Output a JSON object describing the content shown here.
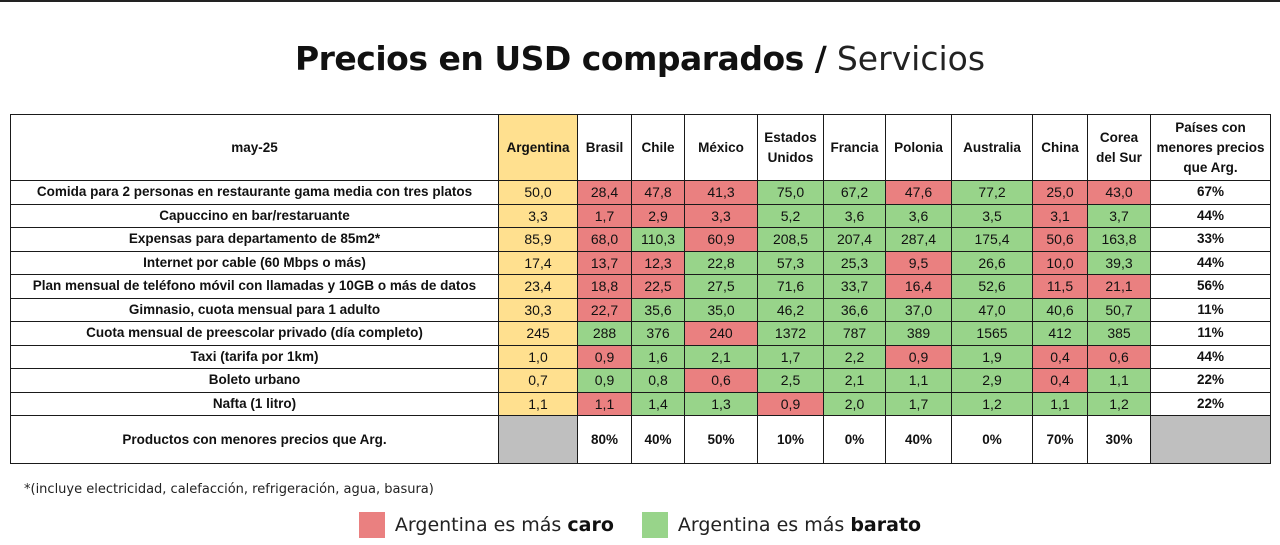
{
  "title": {
    "bold": "Precios en USD comparados /",
    "light": "Servicios"
  },
  "colors": {
    "argentina": "#FFE08F",
    "caro": "#EA8080",
    "barato": "#98D48A",
    "empty": "#BFBFBF"
  },
  "table": {
    "corner_label": "may-25",
    "columns": [
      "Argentina",
      "Brasil",
      "Chile",
      "México",
      "Estados Unidos",
      "Francia",
      "Polonia",
      "Australia",
      "China",
      "Corea del Sur"
    ],
    "last_column": "Países con menores precios que Arg.",
    "rows": [
      {
        "label": "Comida para 2 personas en restaurante gama media con tres platos",
        "values": [
          "50,0",
          "28,4",
          "47,8",
          "41,3",
          "75,0",
          "67,2",
          "47,6",
          "77,2",
          "25,0",
          "43,0"
        ],
        "status": [
          "arg",
          "red",
          "red",
          "red",
          "green",
          "green",
          "red",
          "green",
          "red",
          "red"
        ],
        "pct": "67%"
      },
      {
        "label": "Capuccino en bar/restaruante",
        "values": [
          "3,3",
          "1,7",
          "2,9",
          "3,3",
          "5,2",
          "3,6",
          "3,6",
          "3,5",
          "3,1",
          "3,7"
        ],
        "status": [
          "arg",
          "red",
          "red",
          "red",
          "green",
          "green",
          "green",
          "green",
          "red",
          "green"
        ],
        "pct": "44%"
      },
      {
        "label": "Expensas para departamento de 85m2*",
        "values": [
          "85,9",
          "68,0",
          "110,3",
          "60,9",
          "208,5",
          "207,4",
          "287,4",
          "175,4",
          "50,6",
          "163,8"
        ],
        "status": [
          "arg",
          "red",
          "green",
          "red",
          "green",
          "green",
          "green",
          "green",
          "red",
          "green"
        ],
        "pct": "33%"
      },
      {
        "label": "Internet por cable (60 Mbps o más)",
        "values": [
          "17,4",
          "13,7",
          "12,3",
          "22,8",
          "57,3",
          "25,3",
          "9,5",
          "26,6",
          "10,0",
          "39,3"
        ],
        "status": [
          "arg",
          "red",
          "red",
          "green",
          "green",
          "green",
          "red",
          "green",
          "red",
          "green"
        ],
        "pct": "44%"
      },
      {
        "label": "Plan mensual de teléfono móvil con llamadas y 10GB o más de datos",
        "values": [
          "23,4",
          "18,8",
          "22,5",
          "27,5",
          "71,6",
          "33,7",
          "16,4",
          "52,6",
          "11,5",
          "21,1"
        ],
        "status": [
          "arg",
          "red",
          "red",
          "green",
          "green",
          "green",
          "red",
          "green",
          "red",
          "red"
        ],
        "pct": "56%"
      },
      {
        "label": "Gimnasio, cuota mensual para 1 adulto",
        "values": [
          "30,3",
          "22,7",
          "35,6",
          "35,0",
          "46,2",
          "36,6",
          "37,0",
          "47,0",
          "40,6",
          "50,7"
        ],
        "status": [
          "arg",
          "red",
          "green",
          "green",
          "green",
          "green",
          "green",
          "green",
          "green",
          "green"
        ],
        "pct": "11%"
      },
      {
        "label": "Cuota mensual de preescolar privado (día completo)",
        "values": [
          "245",
          "288",
          "376",
          "240",
          "1372",
          "787",
          "389",
          "1565",
          "412",
          "385"
        ],
        "status": [
          "arg",
          "green",
          "green",
          "red",
          "green",
          "green",
          "green",
          "green",
          "green",
          "green"
        ],
        "pct": "11%"
      },
      {
        "label": "Taxi (tarifa por 1km)",
        "values": [
          "1,0",
          "0,9",
          "1,6",
          "2,1",
          "1,7",
          "2,2",
          "0,9",
          "1,9",
          "0,4",
          "0,6"
        ],
        "status": [
          "arg",
          "red",
          "green",
          "green",
          "green",
          "green",
          "red",
          "green",
          "red",
          "red"
        ],
        "pct": "44%"
      },
      {
        "label": "Boleto urbano",
        "values": [
          "0,7",
          "0,9",
          "0,8",
          "0,6",
          "2,5",
          "2,1",
          "1,1",
          "2,9",
          "0,4",
          "1,1"
        ],
        "status": [
          "arg",
          "green",
          "green",
          "red",
          "green",
          "green",
          "green",
          "green",
          "red",
          "green"
        ],
        "pct": "22%"
      },
      {
        "label": "Nafta (1 litro)",
        "values": [
          "1,1",
          "1,1",
          "1,4",
          "1,3",
          "0,9",
          "2,0",
          "1,7",
          "1,2",
          "1,1",
          "1,2"
        ],
        "status": [
          "arg",
          "red",
          "green",
          "green",
          "red",
          "green",
          "green",
          "green",
          "green",
          "green"
        ],
        "pct": "22%"
      }
    ],
    "summary": {
      "label": "Productos con menores precios que Arg.",
      "values": [
        "",
        "80%",
        "40%",
        "50%",
        "10%",
        "0%",
        "40%",
        "0%",
        "70%",
        "30%"
      ]
    }
  },
  "footnote": "*(incluye electricidad, calefacción, refrigeración, agua, basura)",
  "legend": {
    "caro_prefix": "Argentina es más",
    "caro_bold": "caro",
    "barato_prefix": "Argentina es más",
    "barato_bold": "barato"
  }
}
